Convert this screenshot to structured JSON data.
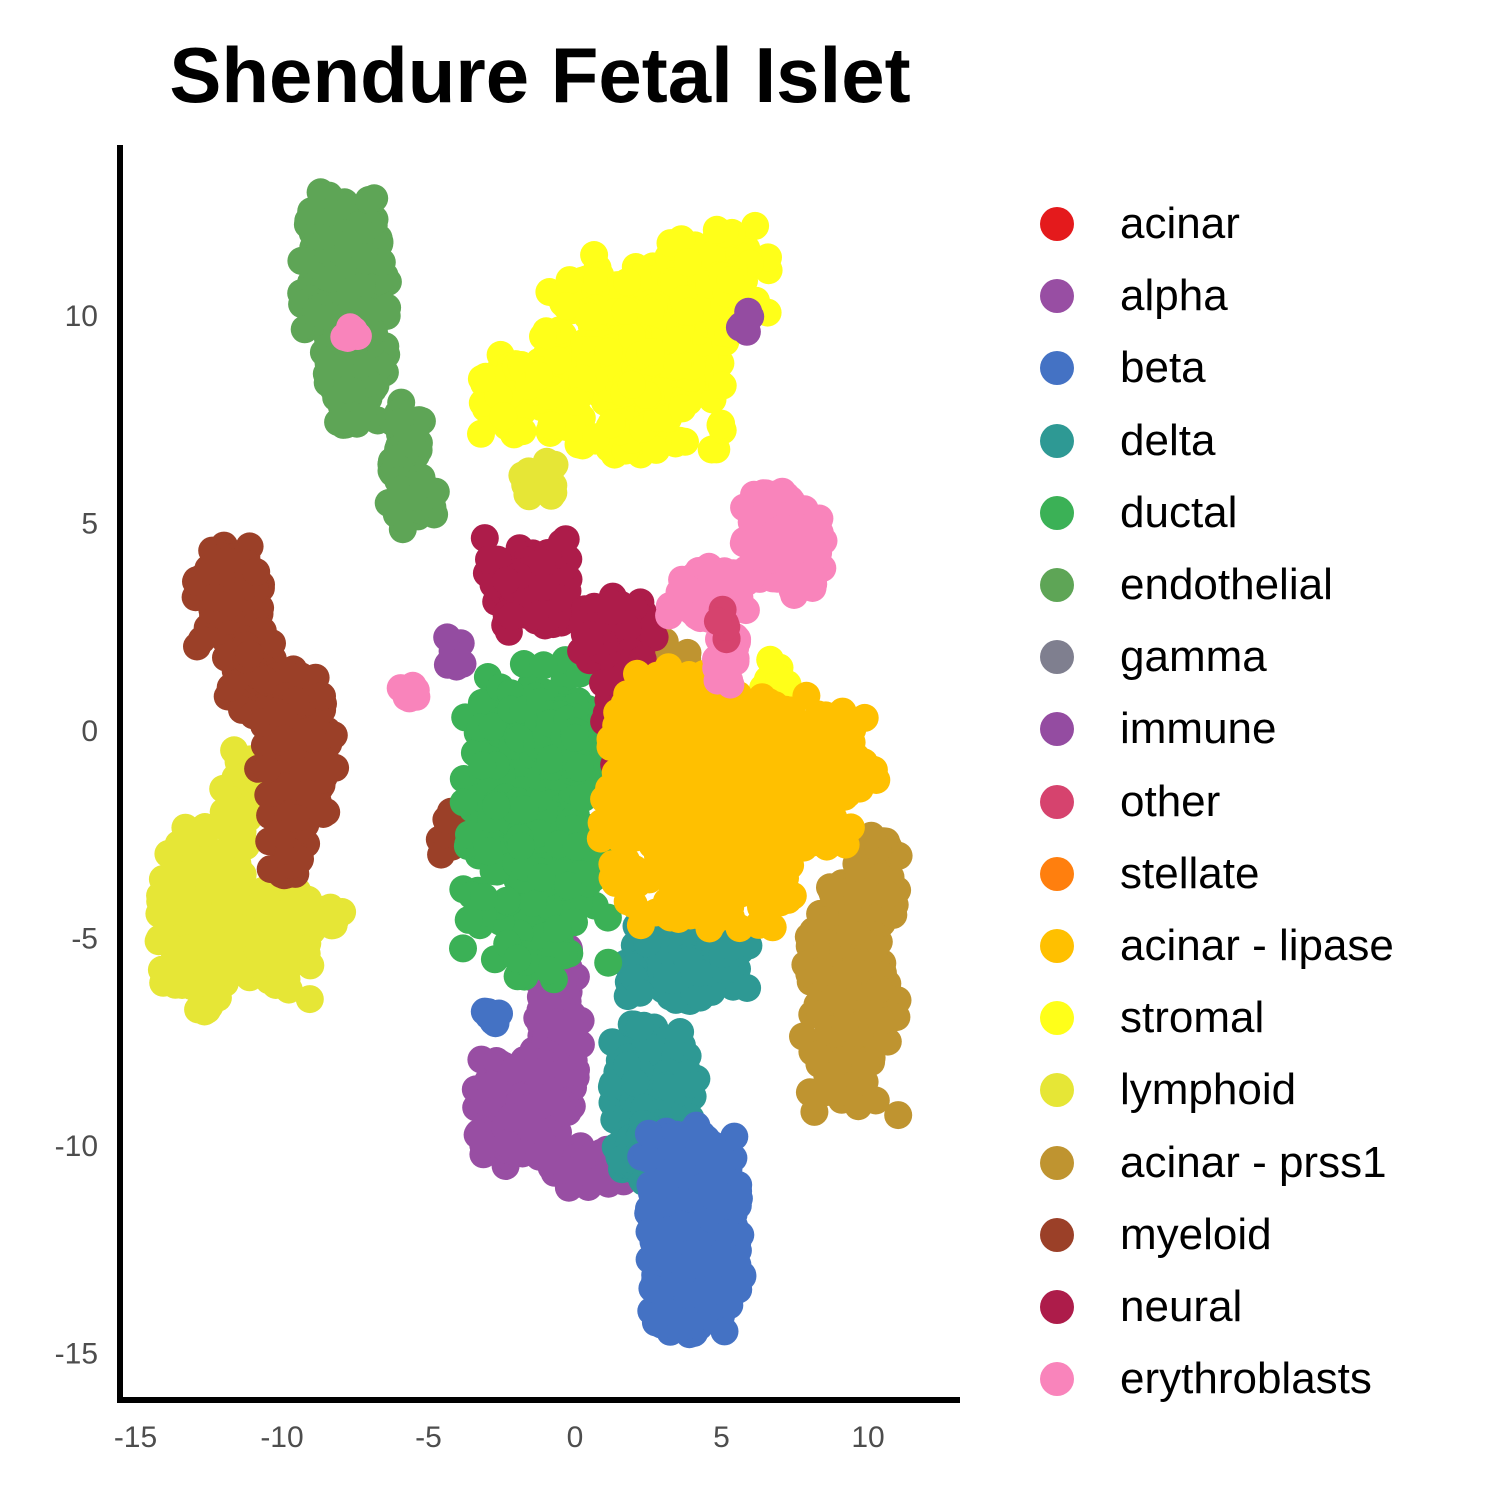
{
  "chart_data": {
    "type": "scatter",
    "title": "Shendure Fetal Islet",
    "xlabel": "",
    "ylabel": "",
    "xlim": [
      -15.5,
      13
    ],
    "ylim": [
      -16,
      14
    ],
    "xticks": [
      "-15",
      "-10",
      "-5",
      "0",
      "5",
      "10"
    ],
    "xtick_values": [
      -15,
      -10,
      -5,
      0,
      5,
      10
    ],
    "yticks": [
      "10",
      "5",
      "0",
      "-5",
      "-10",
      "-15"
    ],
    "ytick_values": [
      10,
      5,
      0,
      -5,
      -10,
      -15
    ],
    "grid": false,
    "legend_position": "right",
    "series": [
      {
        "name": "acinar",
        "color": "#e41a1c",
        "clusters": []
      },
      {
        "name": "alpha",
        "color": "#984ea3",
        "clusters": [
          {
            "cx": -0.6,
            "cy": -7.5,
            "sx": 0.5,
            "sy": 1.6,
            "n": 160
          },
          {
            "cx": -1.8,
            "cy": -9.2,
            "sx": 1.0,
            "sy": 0.8,
            "n": 200
          },
          {
            "cx": 0.5,
            "cy": -10.5,
            "sx": 1.3,
            "sy": 0.35,
            "n": 60
          }
        ]
      },
      {
        "name": "beta",
        "color": "#4472c4",
        "clusters": [
          {
            "cx": 4.0,
            "cy": -11.5,
            "sx": 1.1,
            "sy": 1.2,
            "n": 220
          },
          {
            "cx": 4.1,
            "cy": -13.2,
            "sx": 1.0,
            "sy": 0.9,
            "n": 220
          },
          {
            "cx": 5.0,
            "cy": -11.2,
            "sx": 0.4,
            "sy": 1.1,
            "n": 60
          },
          {
            "cx": -2.8,
            "cy": -6.9,
            "sx": 0.2,
            "sy": 0.12,
            "n": 8
          }
        ]
      },
      {
        "name": "delta",
        "color": "#2e9994",
        "clusters": [
          {
            "cx": 2.7,
            "cy": -8.6,
            "sx": 0.9,
            "sy": 1.0,
            "n": 200
          },
          {
            "cx": 3.8,
            "cy": -5.6,
            "sx": 1.4,
            "sy": 0.6,
            "n": 160
          },
          {
            "cx": 2.2,
            "cy": -10.2,
            "sx": 0.5,
            "sy": 0.5,
            "n": 60
          }
        ]
      },
      {
        "name": "ductal",
        "color": "#3bb156",
        "clusters": [
          {
            "cx": -1.2,
            "cy": -2.2,
            "sx": 1.6,
            "sy": 2.4,
            "n": 420
          },
          {
            "cx": -0.3,
            "cy": -0.5,
            "sx": 0.7,
            "sy": 0.8,
            "n": 60
          }
        ]
      },
      {
        "name": "endothelial",
        "color": "#5ea556",
        "clusters": [
          {
            "cx": -7.8,
            "cy": 11.0,
            "sx": 1.0,
            "sy": 1.2,
            "n": 220
          },
          {
            "cx": -7.5,
            "cy": 8.8,
            "sx": 0.7,
            "sy": 0.9,
            "n": 140
          },
          {
            "cx": -5.8,
            "cy": 6.3,
            "sx": 0.4,
            "sy": 1.0,
            "n": 70
          },
          {
            "cx": -5.4,
            "cy": 5.6,
            "sx": 0.6,
            "sy": 0.35,
            "n": 40
          }
        ]
      },
      {
        "name": "gamma",
        "color": "#7f7f8f",
        "clusters": []
      },
      {
        "name": "immune",
        "color": "#944ca1",
        "clusters": [
          {
            "cx": -4.1,
            "cy": 1.8,
            "sx": 0.2,
            "sy": 0.3,
            "n": 10
          },
          {
            "cx": 5.8,
            "cy": 9.8,
            "sx": 0.2,
            "sy": 0.3,
            "n": 6
          }
        ]
      },
      {
        "name": "other",
        "color": "#d6436e",
        "clusters": [
          {
            "cx": 5.2,
            "cy": 2.5,
            "sx": 0.2,
            "sy": 0.4,
            "n": 6
          }
        ]
      },
      {
        "name": "stellate",
        "color": "#ff7f0e",
        "clusters": []
      },
      {
        "name": "acinar - lipase",
        "color": "#ffc000",
        "clusters": [
          {
            "cx": 4.5,
            "cy": -2.0,
            "sx": 2.2,
            "sy": 1.7,
            "n": 520
          },
          {
            "cx": 7.8,
            "cy": -1.2,
            "sx": 1.6,
            "sy": 1.3,
            "n": 220
          },
          {
            "cx": 3.5,
            "cy": 0.3,
            "sx": 1.3,
            "sy": 0.9,
            "n": 120
          }
        ]
      },
      {
        "name": "stromal",
        "color": "#ffff19",
        "clusters": [
          {
            "cx": 2.0,
            "cy": 9.0,
            "sx": 1.9,
            "sy": 1.5,
            "n": 420
          },
          {
            "cx": 4.8,
            "cy": 10.7,
            "sx": 1.1,
            "sy": 0.9,
            "n": 120
          },
          {
            "cx": -1.4,
            "cy": 8.1,
            "sx": 1.1,
            "sy": 0.6,
            "n": 90
          },
          {
            "cx": 6.8,
            "cy": 0.4,
            "sx": 0.4,
            "sy": 1.0,
            "n": 40
          }
        ]
      },
      {
        "name": "lymphoid",
        "color": "#e6e636",
        "clusters": [
          {
            "cx": -12.6,
            "cy": -4.5,
            "sx": 1.0,
            "sy": 1.4,
            "n": 260
          },
          {
            "cx": -10.3,
            "cy": -5.0,
            "sx": 0.9,
            "sy": 0.9,
            "n": 120
          },
          {
            "cx": -9.2,
            "cy": -4.4,
            "sx": 0.8,
            "sy": 0.3,
            "n": 40
          },
          {
            "cx": -11.3,
            "cy": -1.6,
            "sx": 0.5,
            "sy": 0.7,
            "n": 40
          },
          {
            "cx": -1.3,
            "cy": 6.0,
            "sx": 0.5,
            "sy": 0.3,
            "n": 30
          }
        ]
      },
      {
        "name": "acinar - prss1",
        "color": "#bf9430",
        "clusters": [
          {
            "cx": 9.4,
            "cy": -6.2,
            "sx": 1.0,
            "sy": 1.9,
            "n": 300
          },
          {
            "cx": 10.3,
            "cy": -3.5,
            "sx": 0.6,
            "sy": 0.8,
            "n": 60
          },
          {
            "cx": 2.8,
            "cy": 1.7,
            "sx": 0.8,
            "sy": 0.3,
            "n": 30
          }
        ]
      },
      {
        "name": "myeloid",
        "color": "#9b4028",
        "clusters": [
          {
            "cx": -11.8,
            "cy": 3.2,
            "sx": 0.7,
            "sy": 0.8,
            "n": 140
          },
          {
            "cx": -11.0,
            "cy": 1.5,
            "sx": 0.6,
            "sy": 0.7,
            "n": 80
          },
          {
            "cx": -9.5,
            "cy": -0.5,
            "sx": 0.8,
            "sy": 1.2,
            "n": 150
          },
          {
            "cx": -9.8,
            "cy": -2.8,
            "sx": 0.4,
            "sy": 0.6,
            "n": 40
          },
          {
            "cx": -4.2,
            "cy": -2.5,
            "sx": 0.3,
            "sy": 0.4,
            "n": 12
          }
        ]
      },
      {
        "name": "neural",
        "color": "#ad1c4a",
        "clusters": [
          {
            "cx": -1.5,
            "cy": 3.5,
            "sx": 1.0,
            "sy": 0.7,
            "n": 200
          },
          {
            "cx": 1.4,
            "cy": 2.4,
            "sx": 0.8,
            "sy": 0.5,
            "n": 110
          },
          {
            "cx": 1.7,
            "cy": 0.5,
            "sx": 0.5,
            "sy": 0.9,
            "n": 80
          }
        ]
      },
      {
        "name": "erythroblasts",
        "color": "#f984bb",
        "clusters": [
          {
            "cx": 7.2,
            "cy": 4.5,
            "sx": 0.9,
            "sy": 0.8,
            "n": 170
          },
          {
            "cx": 4.5,
            "cy": 3.3,
            "sx": 0.9,
            "sy": 0.4,
            "n": 80
          },
          {
            "cx": 5.2,
            "cy": 1.8,
            "sx": 0.3,
            "sy": 0.5,
            "n": 30
          },
          {
            "cx": -5.7,
            "cy": 0.9,
            "sx": 0.3,
            "sy": 0.12,
            "n": 10
          },
          {
            "cx": -7.6,
            "cy": 9.5,
            "sx": 0.2,
            "sy": 0.15,
            "n": 6
          }
        ]
      }
    ]
  }
}
